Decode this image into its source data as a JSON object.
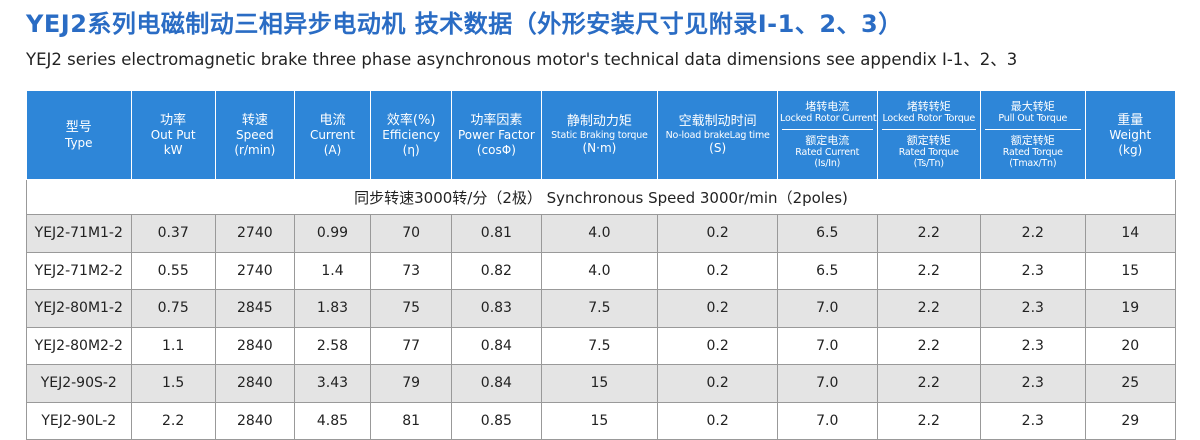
{
  "title_cn": "YEJ2系列电磁制动三相异步电动机 技术数据（外形安装尺寸见附录I-1、2、3）",
  "title_en": "YEJ2 series electromagnetic brake three phase asynchronous motor's  technical  data dimensions see appendix  I-1、2、3",
  "headers": {
    "type": {
      "cn": "型号",
      "en": "Type"
    },
    "output": {
      "cn": "功率",
      "en1": "Out Put",
      "en2": "kW"
    },
    "speed": {
      "cn": "转速",
      "en1": "Speed",
      "en2": "(r/min)"
    },
    "current": {
      "cn": "电流",
      "en1": "Current",
      "en2": "(A)"
    },
    "efficiency": {
      "cn": "效率(%)",
      "en1": "Efficiency",
      "en2": "(η)"
    },
    "power_factor": {
      "cn": "功率因素",
      "en1": "Power Factor",
      "en2": "(cosΦ)"
    },
    "braking_torque": {
      "cn": "静制动力矩",
      "en1": "Static Braking torque",
      "en2": "(N·m)"
    },
    "brake_lag": {
      "cn": "空载制动时间",
      "en1": "No-load brakeLag time",
      "en2": "(S)"
    },
    "locked_current": {
      "cn1": "堵转电流",
      "en1": "Locked Rotor Current",
      "cn2": "额定电流",
      "en2": "Rated Current",
      "en3": "(Is/In)"
    },
    "locked_torque": {
      "cn1": "堵转转矩",
      "en1": "Locked Rotor Torque",
      "cn2": "额定转矩",
      "en2": "Rated Torque",
      "en3": "(Ts/Tn)"
    },
    "max_torque": {
      "cn1": "最大转矩",
      "en1": "Pull Out Torque",
      "cn2": "额定转矩",
      "en2": "Rated Torque",
      "en3": "(Tmax/Tn)"
    },
    "weight": {
      "cn": "重量",
      "en1": "Weight",
      "en2": "(kg)"
    }
  },
  "section_label": "同步转速3000转/分（2极）  Synchronous Speed 3000r/min（2poles)",
  "rows": [
    [
      "YEJ2-71M1-2",
      "0.37",
      "2740",
      "0.99",
      "70",
      "0.81",
      "4.0",
      "0.2",
      "6.5",
      "2.2",
      "2.2",
      "14"
    ],
    [
      "YEJ2-71M2-2",
      "0.55",
      "2740",
      "1.4",
      "73",
      "0.82",
      "4.0",
      "0.2",
      "6.5",
      "2.2",
      "2.3",
      "15"
    ],
    [
      "YEJ2-80M1-2",
      "0.75",
      "2845",
      "1.83",
      "75",
      "0.83",
      "7.5",
      "0.2",
      "7.0",
      "2.2",
      "2.3",
      "19"
    ],
    [
      "YEJ2-80M2-2",
      "1.1",
      "2840",
      "2.58",
      "77",
      "0.84",
      "7.5",
      "0.2",
      "7.0",
      "2.2",
      "2.3",
      "20"
    ],
    [
      "YEJ2-90S-2",
      "1.5",
      "2840",
      "3.43",
      "79",
      "0.84",
      "15",
      "0.2",
      "7.0",
      "2.2",
      "2.3",
      "25"
    ],
    [
      "YEJ2-90L-2",
      "2.2",
      "2840",
      "4.85",
      "81",
      "0.85",
      "15",
      "0.2",
      "7.0",
      "2.2",
      "2.3",
      "29"
    ]
  ],
  "colors": {
    "title": "#2a6cc4",
    "header_bg": "#2e86d8",
    "row_alt": "#e4e4e4"
  }
}
